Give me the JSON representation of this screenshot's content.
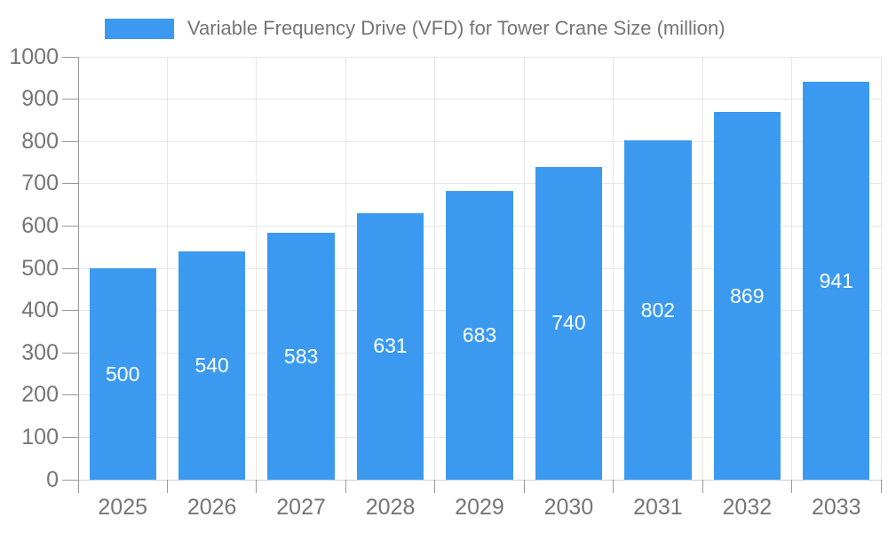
{
  "legend": {
    "label": "Variable Frequency Drive (VFD) for Tower Crane Size (million)"
  },
  "chart_data": {
    "type": "bar",
    "title": "Variable Frequency Drive (VFD) for Tower Crane Size (million)",
    "categories": [
      "2025",
      "2026",
      "2027",
      "2028",
      "2029",
      "2030",
      "2031",
      "2032",
      "2033"
    ],
    "values": [
      500,
      540,
      583,
      631,
      683,
      740,
      802,
      869,
      941
    ],
    "xlabel": "",
    "ylabel": "",
    "ylim": [
      0,
      1000
    ],
    "ytick_step": 100,
    "ytick_labels": [
      "0",
      "100",
      "200",
      "300",
      "400",
      "500",
      "600",
      "700",
      "800",
      "900",
      "1000"
    ],
    "grid": true,
    "legend_position": "top-left",
    "colors": {
      "bar": "#3B9AF0",
      "bar_value_text": "#ffffff",
      "axis_text": "#757575",
      "legend_text": "#757575",
      "gridline": "#e6e6e6",
      "baseline": "#cfcfcf",
      "axis_line": "#999999",
      "background": "#ffffff"
    }
  }
}
